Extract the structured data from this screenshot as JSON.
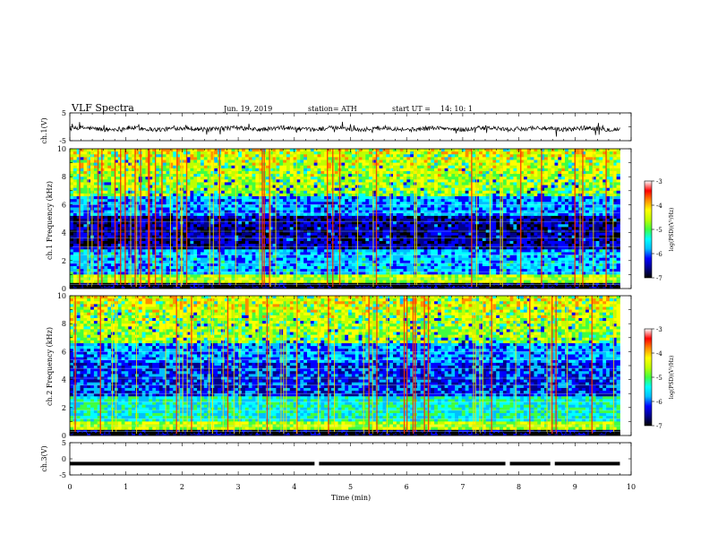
{
  "header": {
    "title": "VLF  Spectra",
    "date": "Jun. 19, 2019",
    "station": "station= ATH",
    "start_label": "start  UT  =",
    "start_time": "14: 10: 1"
  },
  "colorbar": {
    "label": "log(PSD)(V²/Hz)",
    "ticks": [
      "-3",
      "-4",
      "-5",
      "-6",
      "-7"
    ],
    "stops": [
      "#000000",
      "#00008b",
      "#0000ff",
      "#00bfff",
      "#00ffff",
      "#40ff40",
      "#bfff00",
      "#ffff00",
      "#ff8c00",
      "#ff0000",
      "#ffffff"
    ]
  },
  "chart_data": [
    {
      "type": "line",
      "panel": "ch1-waveform",
      "ylabel": "ch.1(V)",
      "ylim": [
        -5,
        5
      ],
      "yticks": [
        "5",
        "-5"
      ],
      "xlim": [
        0,
        10
      ],
      "description_values_V": {
        "typical_range": [
          -1.5,
          0.5
        ],
        "baseline": -0.7
      }
    },
    {
      "type": "heatmap",
      "panel": "ch1-spectrogram",
      "ylabel": "ch.1 Frequency (kHz)",
      "ylim": [
        0,
        10
      ],
      "yticks": [
        "10",
        "8",
        "6",
        "4",
        "2",
        "0"
      ],
      "xlim": [
        0,
        10
      ],
      "xlabel": "",
      "colorbar_range": [
        -7,
        -3
      ]
    },
    {
      "type": "heatmap",
      "panel": "ch2-spectrogram",
      "ylabel": "ch.2 Frequency (kHz)",
      "ylim": [
        0,
        10
      ],
      "yticks": [
        "10",
        "8",
        "6",
        "4",
        "2",
        "0"
      ],
      "xlim": [
        0,
        10
      ],
      "colorbar_range": [
        -7,
        -3
      ]
    },
    {
      "type": "line",
      "panel": "ch3-waveform",
      "ylabel": "ch.3(V)",
      "ylim": [
        -5,
        5
      ],
      "yticks": [
        "5",
        "0",
        "-5"
      ],
      "xlim": [
        0,
        10
      ],
      "xlabel": "Time  (min)",
      "xticks": [
        "0",
        "1",
        "2",
        "3",
        "4",
        "5",
        "6",
        "7",
        "8",
        "9",
        "10"
      ],
      "level_V": -1.5,
      "gaps_min": [
        4.4,
        7.8,
        8.6
      ]
    }
  ]
}
